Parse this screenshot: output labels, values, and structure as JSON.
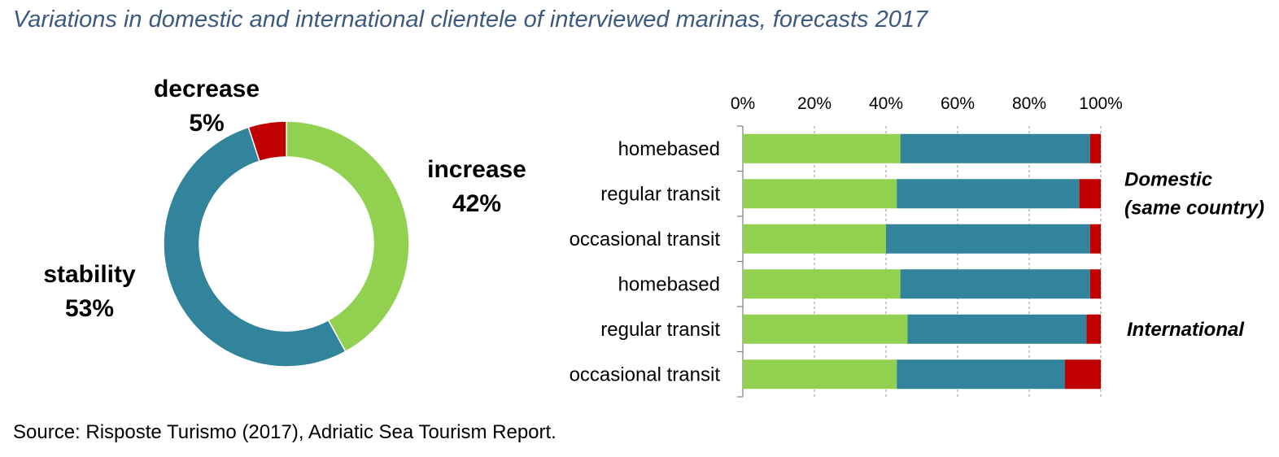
{
  "title": "Variations in domestic and international clientele of interviewed marinas, forecasts 2017",
  "source": "Source: Risposte Turismo (2017), Adriatic Sea Tourism Report.",
  "colors": {
    "increase": "#92d050",
    "stability": "#31849b",
    "decrease": "#c00000"
  },
  "chart_data": [
    {
      "type": "pie",
      "donut": true,
      "slices": [
        {
          "label": "increase",
          "value": 42,
          "value_label": "42%",
          "color": "#92d050"
        },
        {
          "label": "stability",
          "value": 53,
          "value_label": "53%",
          "color": "#31849b"
        },
        {
          "label": "decrease",
          "value": 5,
          "value_label": "5%",
          "color": "#c00000"
        }
      ]
    },
    {
      "type": "bar",
      "orientation": "horizontal",
      "stacked": true,
      "xlim": [
        0,
        100
      ],
      "x_ticks": [
        "0%",
        "20%",
        "40%",
        "60%",
        "80%",
        "100%"
      ],
      "axis_position": "top",
      "categories": [
        "homebased",
        "regular transit",
        "occasional transit",
        "homebased",
        "regular transit",
        "occasional transit"
      ],
      "groups": [
        {
          "label_line1": "Domestic",
          "label_line2": "(same country)",
          "rows": [
            0,
            1,
            2
          ]
        },
        {
          "label_line1": "International",
          "label_line2": "",
          "rows": [
            3,
            4,
            5
          ]
        }
      ],
      "series": [
        {
          "color": "#92d050",
          "values": [
            44,
            43,
            40,
            44,
            46,
            43
          ]
        },
        {
          "color": "#31849b",
          "values": [
            53,
            51,
            57,
            53,
            50,
            47
          ]
        },
        {
          "color": "#c00000",
          "values": [
            3,
            6,
            3,
            3,
            4,
            10
          ]
        }
      ]
    }
  ]
}
